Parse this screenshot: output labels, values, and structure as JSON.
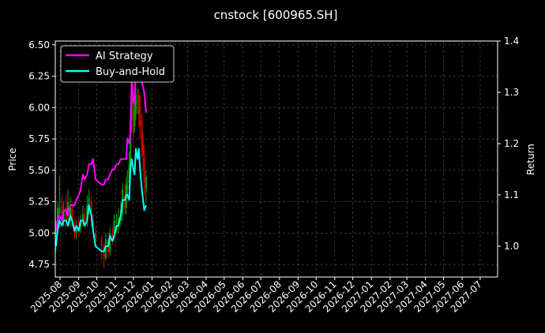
{
  "chart_data": {
    "type": "line",
    "title": "cnstock [600965.SH]",
    "ylabel_left": "Price",
    "ylabel_right": "Return",
    "ylim_left": [
      4.65,
      6.53
    ],
    "ylim_right": [
      0.94,
      1.4
    ],
    "yticks_left": [
      "4.75",
      "5.00",
      "5.25",
      "5.50",
      "5.75",
      "6.00",
      "6.25",
      "6.50"
    ],
    "yticks_right": [
      "1.0",
      "1.1",
      "1.2",
      "1.3",
      "1.4"
    ],
    "x_ticks": [
      "2025-08",
      "2025-09",
      "2025-10",
      "2025-11",
      "2025-12",
      "2026-01",
      "2026-02",
      "2026-03",
      "2026-04",
      "2026-05",
      "2026-06",
      "2026-07",
      "2026-08",
      "2026-09",
      "2026-10",
      "2026-11",
      "2026-12",
      "2027-01",
      "2027-02",
      "2027-03",
      "2027-04",
      "2027-05",
      "2027-06",
      "2027-07"
    ],
    "grid": true,
    "legend_position": "top-left",
    "series": [
      {
        "name": "AI Strategy",
        "axis": "right",
        "color": "#ff00ff",
        "x": [
          "2025-07-25",
          "2025-07-28",
          "2025-07-31",
          "2025-08-04",
          "2025-08-07",
          "2025-08-11",
          "2025-08-14",
          "2025-08-18",
          "2025-08-21",
          "2025-08-25",
          "2025-08-28",
          "2025-09-01",
          "2025-09-04",
          "2025-09-08",
          "2025-09-11",
          "2025-09-15",
          "2025-09-18",
          "2025-09-22",
          "2025-09-25",
          "2025-09-29",
          "2025-10-09",
          "2025-10-13",
          "2025-10-16",
          "2025-10-20",
          "2025-10-23",
          "2025-10-27",
          "2025-10-30",
          "2025-11-03",
          "2025-11-06",
          "2025-11-10",
          "2025-11-13",
          "2025-11-17",
          "2025-11-19",
          "2025-11-21",
          "2025-11-24",
          "2025-11-26",
          "2025-11-28",
          "2025-12-01",
          "2025-12-03",
          "2025-12-05",
          "2025-12-08",
          "2025-12-10",
          "2025-12-12",
          "2025-12-15",
          "2025-12-17",
          "2025-12-19",
          "2025-12-22"
        ],
        "values": [
          1.03,
          1.05,
          1.06,
          1.05,
          1.07,
          1.07,
          1.06,
          1.08,
          1.08,
          1.08,
          1.09,
          1.1,
          1.11,
          1.14,
          1.13,
          1.14,
          1.16,
          1.16,
          1.17,
          1.13,
          1.12,
          1.12,
          1.13,
          1.13,
          1.14,
          1.15,
          1.15,
          1.16,
          1.16,
          1.17,
          1.17,
          1.17,
          1.17,
          1.21,
          1.2,
          1.22,
          1.32,
          1.28,
          1.28,
          1.34,
          1.33,
          1.35,
          1.33,
          1.32,
          1.31,
          1.3,
          1.26
        ]
      },
      {
        "name": "Buy-and-Hold",
        "axis": "right",
        "color": "#00ffff",
        "x": [
          "2025-07-25",
          "2025-07-28",
          "2025-07-31",
          "2025-08-04",
          "2025-08-07",
          "2025-08-11",
          "2025-08-14",
          "2025-08-18",
          "2025-08-21",
          "2025-08-25",
          "2025-08-28",
          "2025-09-01",
          "2025-09-04",
          "2025-09-08",
          "2025-09-11",
          "2025-09-15",
          "2025-09-18",
          "2025-09-22",
          "2025-09-25",
          "2025-09-29",
          "2025-10-09",
          "2025-10-13",
          "2025-10-16",
          "2025-10-20",
          "2025-10-23",
          "2025-10-27",
          "2025-10-30",
          "2025-11-03",
          "2025-11-06",
          "2025-11-10",
          "2025-11-13",
          "2025-11-17",
          "2025-11-19",
          "2025-11-21",
          "2025-11-24",
          "2025-11-26",
          "2025-11-28",
          "2025-12-01",
          "2025-12-03",
          "2025-12-05",
          "2025-12-08",
          "2025-12-10",
          "2025-12-12",
          "2025-12-15",
          "2025-12-17",
          "2025-12-19",
          "2025-12-22"
        ],
        "values": [
          1.0,
          1.03,
          1.05,
          1.04,
          1.05,
          1.05,
          1.04,
          1.06,
          1.05,
          1.03,
          1.04,
          1.03,
          1.05,
          1.05,
          1.04,
          1.05,
          1.08,
          1.06,
          1.03,
          1.0,
          0.99,
          0.99,
          1.0,
          1.0,
          1.02,
          1.01,
          1.02,
          1.04,
          1.04,
          1.06,
          1.09,
          1.09,
          1.1,
          1.1,
          1.09,
          1.15,
          1.17,
          1.15,
          1.14,
          1.19,
          1.17,
          1.19,
          1.15,
          1.11,
          1.09,
          1.07,
          1.08
        ]
      }
    ],
    "candles": {
      "axis": "left",
      "up_color": "#00a000",
      "down_color": "#d00000",
      "x": [
        "2025-07-25",
        "2025-07-28",
        "2025-07-31",
        "2025-08-04",
        "2025-08-07",
        "2025-08-11",
        "2025-08-14",
        "2025-08-18",
        "2025-08-21",
        "2025-08-25",
        "2025-08-28",
        "2025-09-01",
        "2025-09-04",
        "2025-09-08",
        "2025-09-11",
        "2025-09-15",
        "2025-09-18",
        "2025-09-22",
        "2025-09-25",
        "2025-09-29",
        "2025-10-09",
        "2025-10-13",
        "2025-10-16",
        "2025-10-20",
        "2025-10-23",
        "2025-10-27",
        "2025-10-30",
        "2025-11-03",
        "2025-11-06",
        "2025-11-10",
        "2025-11-13",
        "2025-11-17",
        "2025-11-19",
        "2025-11-21",
        "2025-11-24",
        "2025-11-26",
        "2025-11-28",
        "2025-12-01",
        "2025-12-03",
        "2025-12-05",
        "2025-12-08",
        "2025-12-10",
        "2025-12-12",
        "2025-12-15",
        "2025-12-17",
        "2025-12-19",
        "2025-12-22"
      ],
      "open": [
        4.9,
        5.05,
        5.15,
        5.22,
        5.1,
        5.2,
        5.15,
        5.1,
        5.2,
        5.05,
        5.0,
        5.05,
        5.05,
        5.1,
        5.15,
        5.1,
        5.2,
        5.25,
        5.1,
        5.0,
        4.95,
        4.9,
        4.8,
        4.95,
        4.85,
        5.0,
        5.0,
        5.05,
        5.05,
        5.1,
        5.15,
        5.3,
        5.2,
        5.35,
        5.4,
        5.55,
        5.9,
        6.1,
        5.85,
        5.95,
        6.05,
        6.1,
        6.0,
        5.9,
        5.7,
        5.6,
        5.35
      ],
      "close": [
        5.05,
        5.2,
        5.2,
        5.12,
        5.18,
        5.1,
        5.25,
        5.2,
        5.1,
        5.0,
        5.05,
        5.02,
        5.1,
        5.15,
        5.1,
        5.22,
        5.28,
        5.1,
        5.02,
        4.95,
        4.9,
        4.8,
        4.95,
        4.85,
        5.0,
        4.95,
        5.1,
        5.05,
        5.12,
        5.18,
        5.35,
        5.2,
        5.4,
        5.38,
        5.55,
        5.9,
        6.15,
        5.8,
        5.98,
        6.1,
        6.05,
        5.95,
        5.85,
        5.7,
        5.62,
        5.4,
        5.45
      ],
      "high": [
        5.1,
        5.25,
        5.45,
        5.3,
        5.25,
        5.3,
        5.35,
        5.28,
        5.25,
        5.12,
        5.1,
        5.12,
        5.15,
        5.22,
        5.2,
        5.3,
        5.35,
        5.3,
        5.15,
        5.05,
        4.98,
        4.92,
        5.0,
        5.0,
        5.05,
        5.05,
        5.15,
        5.15,
        5.2,
        5.25,
        5.4,
        5.38,
        5.45,
        5.5,
        5.65,
        6.0,
        6.4,
        6.2,
        6.1,
        6.2,
        6.15,
        6.15,
        6.1,
        5.95,
        5.8,
        5.7,
        5.5
      ],
      "low": [
        4.85,
        5.0,
        5.05,
        5.05,
        5.05,
        5.05,
        5.1,
        5.05,
        5.05,
        4.95,
        4.95,
        4.98,
        5.0,
        5.05,
        5.05,
        5.05,
        5.15,
        5.05,
        4.98,
        4.88,
        4.78,
        4.72,
        4.78,
        4.8,
        4.82,
        4.9,
        4.95,
        5.0,
        5.0,
        5.05,
        5.1,
        5.15,
        5.15,
        5.28,
        5.3,
        5.45,
        5.8,
        5.75,
        5.8,
        5.9,
        5.95,
        5.85,
        5.75,
        5.6,
        5.5,
        5.3,
        5.25
      ]
    }
  }
}
